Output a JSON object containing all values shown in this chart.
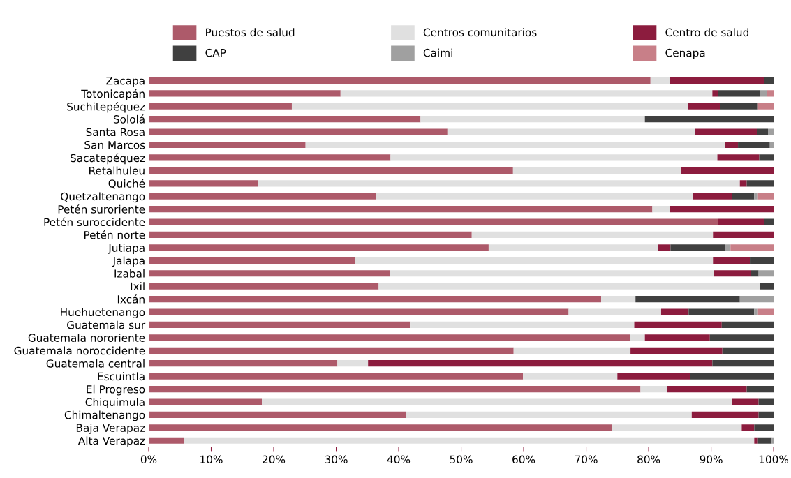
{
  "chart_data": {
    "type": "bar",
    "orientation": "horizontal",
    "stacked": true,
    "legend": "top",
    "grid": false,
    "categories": [
      "Zacapa",
      "Totonicapán",
      "Suchitepéquez",
      "Sololá",
      "Santa Rosa",
      "San Marcos",
      "Sacatepéquez",
      "Retalhuleu",
      "Quiché",
      "Quetzaltenango",
      "Petén suroriente",
      "Petén suroccidente",
      "Petén norte",
      "Jutiapa",
      "Jalapa",
      "Izabal",
      "Ixil",
      "Ixcán",
      "Huehuetenango",
      "Guatemala sur",
      "Guatemala nororiente",
      "Guatemala noroccidente",
      "Guatemala central",
      "Escuintla",
      "El Progreso",
      "Chiquimula",
      "Chimaltenango",
      "Baja Verapaz",
      "Alta Verapaz"
    ],
    "series": [
      {
        "name": "Puestos de salud",
        "color": "#ad5a6a",
        "values": [
          80.3,
          30.7,
          22.9,
          43.5,
          47.8,
          25.1,
          38.7,
          58.3,
          17.5,
          36.4,
          80.6,
          91.1,
          51.7,
          54.4,
          33.0,
          38.6,
          36.8,
          72.4,
          67.2,
          41.8,
          77.0,
          58.4,
          30.2,
          59.9,
          78.7,
          18.1,
          41.2,
          74.1,
          5.6
        ]
      },
      {
        "name": "Centros comunitarios",
        "color": "#e0e0e0",
        "values": [
          3.1,
          59.5,
          63.4,
          35.9,
          39.6,
          67.1,
          52.3,
          26.9,
          77.1,
          50.7,
          2.8,
          0,
          38.6,
          27.1,
          57.3,
          51.8,
          61.0,
          5.5,
          14.8,
          35.9,
          2.4,
          18.7,
          4.9,
          15.1,
          4.2,
          75.2,
          45.7,
          20.8,
          91.3
        ]
      },
      {
        "name": "Centro de salud",
        "color": "#8c1c3e",
        "values": [
          15.1,
          0.9,
          5.2,
          0,
          10.0,
          2.1,
          6.7,
          14.8,
          1.1,
          6.2,
          16.6,
          7.4,
          9.7,
          2.0,
          5.9,
          6.0,
          0,
          0,
          4.4,
          14.0,
          10.4,
          14.7,
          55.1,
          11.6,
          12.8,
          4.3,
          10.7,
          2.0,
          0.6
        ]
      },
      {
        "name": "CAP",
        "color": "#404040",
        "values": [
          1.5,
          6.7,
          6.0,
          20.6,
          1.7,
          5.1,
          2.3,
          0,
          4.3,
          3.6,
          0,
          1.5,
          0,
          8.7,
          3.8,
          1.2,
          2.2,
          16.7,
          10.5,
          8.3,
          10.2,
          8.2,
          9.8,
          13.4,
          4.3,
          2.4,
          2.4,
          3.1,
          2.2
        ]
      },
      {
        "name": "Caimi",
        "color": "#a0a0a0",
        "values": [
          0,
          1.1,
          0,
          0,
          0.9,
          0.6,
          0,
          0,
          0,
          0.6,
          0,
          0,
          0,
          0.9,
          0,
          2.4,
          0,
          5.4,
          0.6,
          0,
          0,
          0,
          0,
          0,
          0,
          0,
          0,
          0,
          0.3
        ]
      },
      {
        "name": "Cenapa",
        "color": "#c87f88",
        "values": [
          0,
          1.1,
          2.5,
          0,
          0,
          0,
          0,
          0,
          0,
          2.5,
          0,
          0,
          0,
          6.9,
          0,
          0,
          0,
          0,
          2.5,
          0,
          0,
          0,
          0,
          0,
          0,
          0,
          0,
          0,
          0
        ]
      }
    ],
    "xlim": [
      0,
      100
    ],
    "xticks": [
      {
        "value": 0,
        "label": "0%"
      },
      {
        "value": 10,
        "label": "10%"
      },
      {
        "value": 20,
        "label": "20%"
      },
      {
        "value": 30,
        "label": "30%"
      },
      {
        "value": 40,
        "label": "40%"
      },
      {
        "value": 50,
        "label": "50%"
      },
      {
        "value": 60,
        "label": "60%"
      },
      {
        "value": 70,
        "label": "70%"
      },
      {
        "value": 80,
        "label": "80%"
      },
      {
        "value": 90,
        "label": "90%"
      },
      {
        "value": 100,
        "label": "100%"
      }
    ]
  }
}
